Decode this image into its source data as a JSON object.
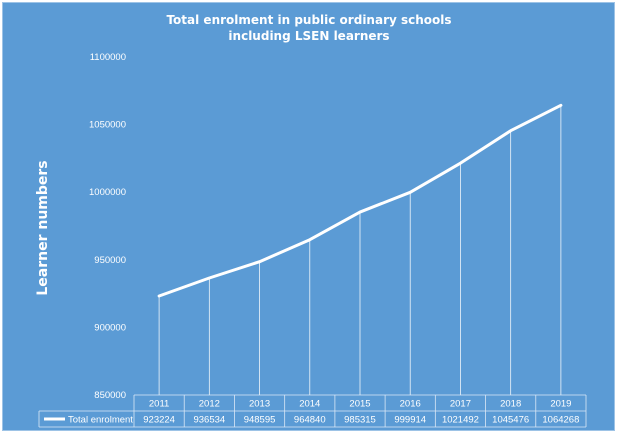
{
  "chart_data": {
    "type": "line",
    "title": "Total enrolment in public ordinary schools",
    "subtitle": "including LSEN learners",
    "ylabel": "Learner numbers",
    "ylim": [
      850000,
      1100000
    ],
    "yticks": [
      "850000",
      "900000",
      "950000",
      "1000000",
      "1050000",
      "1100000"
    ],
    "categories": [
      "2011",
      "2012",
      "2013",
      "2014",
      "2015",
      "2016",
      "2017",
      "2018",
      "2019"
    ],
    "series": [
      {
        "name": "Total enrolment",
        "values": [
          923224,
          936534,
          948595,
          964840,
          985315,
          999914,
          1021492,
          1045476,
          1064268
        ],
        "value_labels": [
          "923224",
          "936534",
          "948595",
          "964840",
          "985315",
          "999914",
          "1021492",
          "1045476",
          "1064268"
        ]
      }
    ],
    "grid": false,
    "drop_lines": true,
    "data_table": true,
    "colors": {
      "background": "#5b9bd5",
      "line": "#ffffff",
      "text": "#ffffff"
    }
  }
}
